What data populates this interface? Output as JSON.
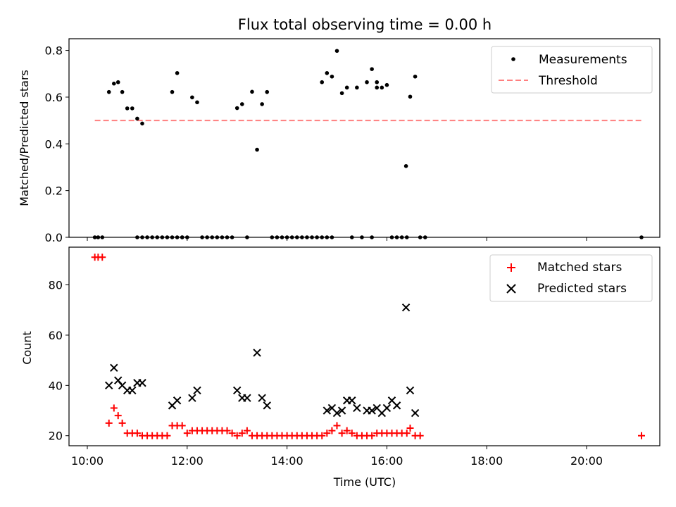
{
  "chart_data": [
    {
      "type": "scatter",
      "title": "Flux total observing time = 0.00 h",
      "xlabel": "",
      "ylabel": "Matched/Predicted stars",
      "xlim": [
        "10:00",
        "21:00"
      ],
      "ylim": [
        0.0,
        0.85
      ],
      "yticks": [
        "0.0",
        "0.2",
        "0.4",
        "0.6",
        "0.8"
      ],
      "legend_position": "upper right",
      "grid": false,
      "series": [
        {
          "name": "Measurements",
          "kind": "points",
          "color": "#000000",
          "points": [
            [
              "10:09",
              0.0
            ],
            [
              "10:13",
              0.0
            ],
            [
              "10:18",
              0.0
            ],
            [
              "10:26",
              0.622
            ],
            [
              "10:32",
              0.658
            ],
            [
              "10:37",
              0.664
            ],
            [
              "10:42",
              0.622
            ],
            [
              "10:48",
              0.552
            ],
            [
              "10:54",
              0.552
            ],
            [
              "11:00",
              0.508
            ],
            [
              "11:06",
              0.487
            ],
            [
              "11:12",
              0.0
            ],
            [
              "11:18",
              0.0
            ],
            [
              "11:24",
              0.0
            ],
            [
              "11:30",
              0.0
            ],
            [
              "11:36",
              0.0
            ],
            [
              "11:42",
              0.0
            ],
            [
              "11:48",
              0.0
            ],
            [
              "11:54",
              0.0
            ],
            [
              "11:00",
              0.0
            ],
            [
              "11:06",
              0.0
            ],
            [
              "11:42",
              0.622
            ],
            [
              "11:48",
              0.703
            ],
            [
              "11:54",
              0.0
            ],
            [
              "12:00",
              0.0
            ],
            [
              "12:06",
              0.599
            ],
            [
              "12:12",
              0.578
            ],
            [
              "12:18",
              0.0
            ],
            [
              "12:24",
              0.0
            ],
            [
              "12:30",
              0.0
            ],
            [
              "12:36",
              0.0
            ],
            [
              "12:42",
              0.0
            ],
            [
              "12:48",
              0.0
            ],
            [
              "12:54",
              0.0
            ],
            [
              "13:00",
              0.553
            ],
            [
              "13:06",
              0.57
            ],
            [
              "13:12",
              0.0
            ],
            [
              "13:18",
              0.623
            ],
            [
              "13:24",
              0.375
            ],
            [
              "13:30",
              0.57
            ],
            [
              "13:36",
              0.622
            ],
            [
              "13:42",
              0.0
            ],
            [
              "13:48",
              0.0
            ],
            [
              "13:54",
              0.0
            ],
            [
              "14:00",
              0.0
            ],
            [
              "14:06",
              0.0
            ],
            [
              "14:12",
              0.0
            ],
            [
              "14:18",
              0.0
            ],
            [
              "14:24",
              0.0
            ],
            [
              "14:30",
              0.0
            ],
            [
              "14:36",
              0.0
            ],
            [
              "14:42",
              0.0
            ],
            [
              "14:48",
              0.0
            ],
            [
              "14:54",
              0.0
            ],
            [
              "14:42",
              0.664
            ],
            [
              "14:48",
              0.703
            ],
            [
              "14:54",
              0.688
            ],
            [
              "15:00",
              0.798
            ],
            [
              "15:06",
              0.617
            ],
            [
              "15:12",
              0.641
            ],
            [
              "15:18",
              0.0
            ],
            [
              "15:24",
              0.641
            ],
            [
              "15:30",
              0.0
            ],
            [
              "15:36",
              0.664
            ],
            [
              "15:42",
              0.0
            ],
            [
              "15:48",
              0.641
            ],
            [
              "15:42",
              0.72
            ],
            [
              "15:48",
              0.664
            ],
            [
              "15:54",
              0.641
            ],
            [
              "16:00",
              0.652
            ],
            [
              "16:06",
              0.0
            ],
            [
              "16:12",
              0.0
            ],
            [
              "16:18",
              0.0
            ],
            [
              "16:24",
              0.0
            ],
            [
              "16:23",
              0.305
            ],
            [
              "16:28",
              0.602
            ],
            [
              "16:34",
              0.688
            ],
            [
              "16:40",
              0.0
            ],
            [
              "16:46",
              0.0
            ],
            [
              "21:06",
              0.0
            ]
          ]
        },
        {
          "name": "Threshold",
          "kind": "dashed-line",
          "color": "#ff7f7f",
          "points": [
            [
              "10:09",
              0.5
            ],
            [
              "21:06",
              0.5
            ]
          ]
        }
      ]
    },
    {
      "type": "scatter",
      "title": "",
      "xlabel": "Time (UTC)",
      "ylabel": "Count",
      "xlim": [
        "09:38",
        "21:28"
      ],
      "ylim": [
        16,
        95
      ],
      "xticks": [
        "10:00",
        "12:00",
        "14:00",
        "16:00",
        "18:00",
        "20:00"
      ],
      "yticks": [
        "20",
        "40",
        "60",
        "80"
      ],
      "legend_position": "upper right",
      "grid": false,
      "series": [
        {
          "name": "Matched stars",
          "marker": "plus",
          "color": "#ff0000",
          "points": [
            [
              "10:09",
              91
            ],
            [
              "10:13",
              91
            ],
            [
              "10:18",
              91
            ],
            [
              "10:26",
              25
            ],
            [
              "10:32",
              31
            ],
            [
              "10:37",
              28
            ],
            [
              "10:42",
              25
            ],
            [
              "10:48",
              21
            ],
            [
              "10:54",
              21
            ],
            [
              "11:00",
              21
            ],
            [
              "11:06",
              20
            ],
            [
              "11:12",
              20
            ],
            [
              "11:18",
              20
            ],
            [
              "11:24",
              20
            ],
            [
              "11:30",
              20
            ],
            [
              "11:36",
              20
            ],
            [
              "11:42",
              24
            ],
            [
              "11:48",
              24
            ],
            [
              "11:54",
              24
            ],
            [
              "12:00",
              21
            ],
            [
              "12:06",
              22
            ],
            [
              "12:12",
              22
            ],
            [
              "12:18",
              22
            ],
            [
              "12:24",
              22
            ],
            [
              "12:30",
              22
            ],
            [
              "12:36",
              22
            ],
            [
              "12:42",
              22
            ],
            [
              "12:48",
              22
            ],
            [
              "12:54",
              21
            ],
            [
              "13:00",
              20
            ],
            [
              "13:06",
              21
            ],
            [
              "13:12",
              22
            ],
            [
              "13:18",
              20
            ],
            [
              "13:24",
              20
            ],
            [
              "13:30",
              20
            ],
            [
              "13:36",
              20
            ],
            [
              "13:42",
              20
            ],
            [
              "13:48",
              20
            ],
            [
              "13:54",
              20
            ],
            [
              "14:00",
              20
            ],
            [
              "14:06",
              20
            ],
            [
              "14:12",
              20
            ],
            [
              "14:18",
              20
            ],
            [
              "14:24",
              20
            ],
            [
              "14:30",
              20
            ],
            [
              "14:36",
              20
            ],
            [
              "14:42",
              20
            ],
            [
              "14:48",
              21
            ],
            [
              "14:54",
              22
            ],
            [
              "15:00",
              24
            ],
            [
              "15:06",
              21
            ],
            [
              "15:12",
              22
            ],
            [
              "15:18",
              21
            ],
            [
              "15:24",
              20
            ],
            [
              "15:30",
              20
            ],
            [
              "15:36",
              20
            ],
            [
              "15:42",
              20
            ],
            [
              "15:48",
              21
            ],
            [
              "15:54",
              21
            ],
            [
              "16:00",
              21
            ],
            [
              "16:06",
              21
            ],
            [
              "16:12",
              21
            ],
            [
              "16:18",
              21
            ],
            [
              "16:24",
              21
            ],
            [
              "16:28",
              23
            ],
            [
              "16:34",
              20
            ],
            [
              "16:40",
              20
            ],
            [
              "21:06",
              20
            ]
          ]
        },
        {
          "name": "Predicted stars",
          "marker": "x",
          "color": "#000000",
          "points": [
            [
              "10:26",
              40
            ],
            [
              "10:32",
              47
            ],
            [
              "10:37",
              42
            ],
            [
              "10:42",
              40
            ],
            [
              "10:48",
              38
            ],
            [
              "10:54",
              38
            ],
            [
              "11:00",
              41
            ],
            [
              "11:06",
              41
            ],
            [
              "11:42",
              32
            ],
            [
              "11:48",
              34
            ],
            [
              "12:06",
              35
            ],
            [
              "12:12",
              38
            ],
            [
              "13:00",
              38
            ],
            [
              "13:06",
              35
            ],
            [
              "13:12",
              35
            ],
            [
              "13:24",
              53
            ],
            [
              "13:30",
              35
            ],
            [
              "13:36",
              32
            ],
            [
              "14:48",
              30
            ],
            [
              "14:54",
              31
            ],
            [
              "15:00",
              29
            ],
            [
              "15:06",
              30
            ],
            [
              "15:12",
              34
            ],
            [
              "15:18",
              34
            ],
            [
              "15:24",
              31
            ],
            [
              "15:36",
              30
            ],
            [
              "15:42",
              30
            ],
            [
              "15:48",
              31
            ],
            [
              "15:54",
              29
            ],
            [
              "16:00",
              31
            ],
            [
              "16:06",
              34
            ],
            [
              "16:12",
              32
            ],
            [
              "16:23",
              71
            ],
            [
              "16:28",
              38
            ],
            [
              "16:34",
              29
            ]
          ]
        }
      ]
    }
  ]
}
